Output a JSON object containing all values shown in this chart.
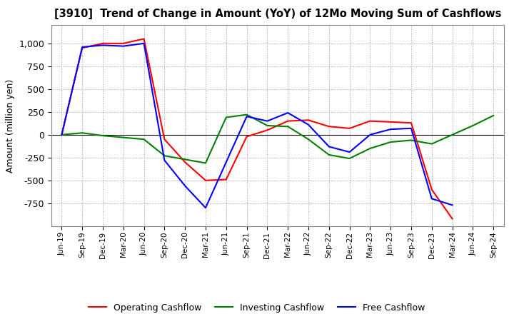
{
  "title": "[3910]  Trend of Change in Amount (YoY) of 12Mo Moving Sum of Cashflows",
  "ylabel": "Amount (million yen)",
  "x_labels": [
    "Jun-19",
    "Sep-19",
    "Dec-19",
    "Mar-20",
    "Jun-20",
    "Sep-20",
    "Dec-20",
    "Mar-21",
    "Jun-21",
    "Sep-21",
    "Dec-21",
    "Mar-22",
    "Jun-22",
    "Sep-22",
    "Dec-22",
    "Mar-23",
    "Jun-23",
    "Sep-23",
    "Dec-23",
    "Mar-24",
    "Jun-24",
    "Sep-24"
  ],
  "operating": [
    0,
    950,
    1000,
    1000,
    1050,
    -50,
    -300,
    -500,
    -490,
    -20,
    50,
    150,
    160,
    90,
    70,
    150,
    140,
    130,
    -600,
    -920,
    null,
    null
  ],
  "investing": [
    0,
    20,
    -10,
    -30,
    -50,
    -230,
    -270,
    -310,
    190,
    220,
    100,
    90,
    -50,
    -220,
    -260,
    -150,
    -80,
    -60,
    -100,
    0,
    100,
    210
  ],
  "free": [
    0,
    960,
    980,
    970,
    1000,
    -280,
    -560,
    -800,
    -300,
    200,
    150,
    240,
    110,
    -130,
    -190,
    0,
    60,
    70,
    -700,
    -770,
    null,
    null
  ],
  "ylim": [
    -1000,
    1200
  ],
  "yticks": [
    -750,
    -500,
    -250,
    0,
    250,
    500,
    750,
    1000
  ],
  "operating_color": "#ff0000",
  "investing_color": "#008000",
  "free_color": "#0000ff",
  "legend_labels": [
    "Operating Cashflow",
    "Investing Cashflow",
    "Free Cashflow"
  ],
  "bg_color": "#ffffff",
  "plot_bg_color": "#ffffff"
}
